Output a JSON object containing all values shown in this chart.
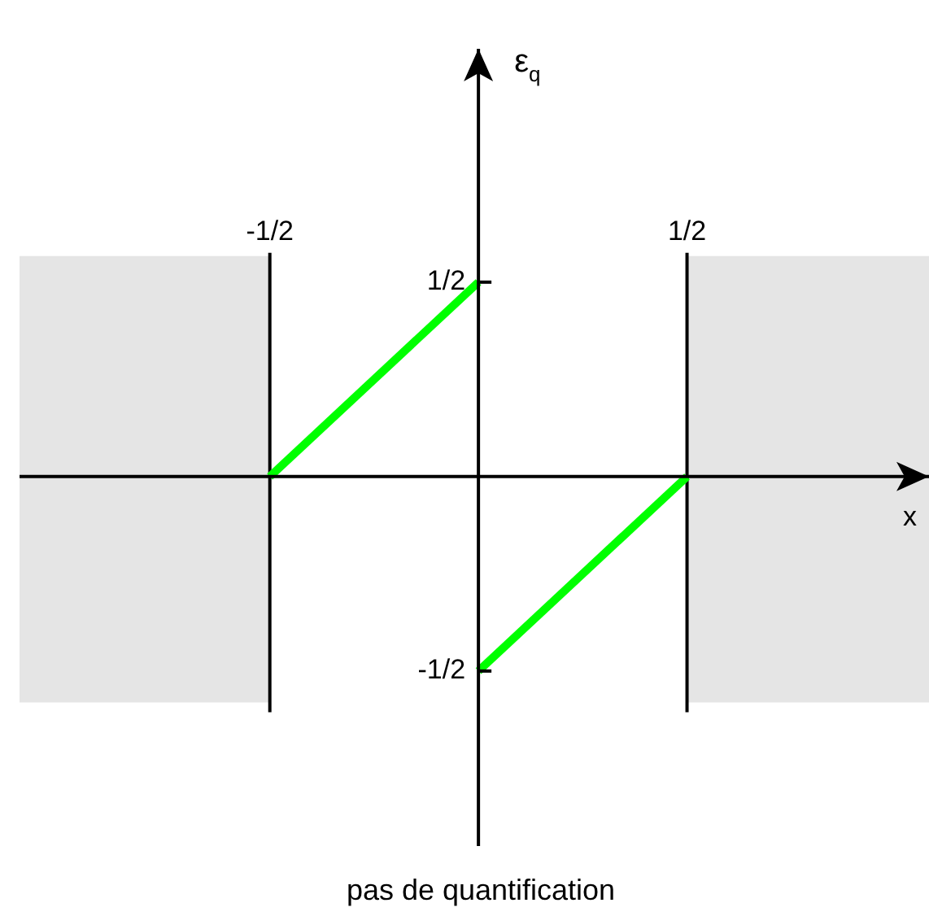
{
  "chart_data": {
    "type": "line",
    "xlabel": "x",
    "ylabel": "ε$_{q}$",
    "annotations": [
      "pas de quantification"
    ],
    "xlim": [
      -1.1,
      1.08
    ],
    "ylim": [
      -0.95,
      1.1
    ],
    "xticks": [
      {
        "value": -0.5,
        "label": "-1/2"
      },
      {
        "value": 0.5,
        "label": "1/2"
      }
    ],
    "yticks": [
      {
        "value": -0.5,
        "label": "-1/2"
      },
      {
        "value": 0.5,
        "label": "1/2"
      }
    ],
    "series": [
      {
        "color": "#00ff00",
        "x": [
          -0.5,
          0
        ],
        "values": [
          0,
          0.5
        ]
      },
      {
        "color": "#00ff00",
        "x": [
          0,
          0.5
        ],
        "values": [
          -0.5,
          0
        ]
      }
    ],
    "ref_lines": [
      {
        "axis": "x",
        "value": -0.5,
        "color": "#000000"
      },
      {
        "axis": "x",
        "value": 0.5,
        "color": "#000000"
      }
    ],
    "bands": [
      {
        "axis": "x",
        "from": -1.1,
        "to": -0.5,
        "color": "#e5e5e5"
      },
      {
        "axis": "x",
        "from": 0.5,
        "to": 1.08,
        "color": "#e5e5e5"
      }
    ],
    "marker": "none"
  }
}
